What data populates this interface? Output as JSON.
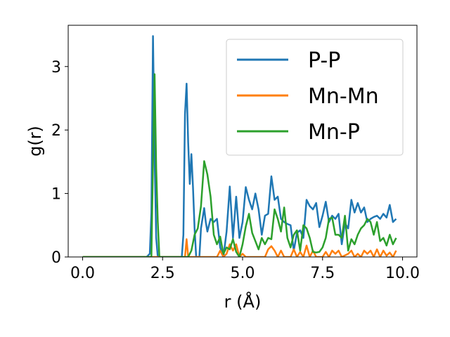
{
  "chart_data": {
    "type": "line",
    "title": "",
    "xlabel": "r (Å)",
    "ylabel": "g(r)",
    "xlim": [
      -0.45,
      10.45
    ],
    "ylim": [
      0,
      3.65
    ],
    "xticks": [
      0.0,
      2.5,
      5.0,
      7.5,
      10.0
    ],
    "xtick_labels": [
      "0.0",
      "2.5",
      "5.0",
      "7.5",
      "10.0"
    ],
    "yticks": [
      0,
      1,
      2,
      3
    ],
    "ytick_labels": [
      "0",
      "1",
      "2",
      "3"
    ],
    "grid": false,
    "legend_position": "upper-right",
    "series": [
      {
        "name": "P-P",
        "color": "#1f77b4",
        "points": [
          [
            0,
            0
          ],
          [
            2.0,
            0
          ],
          [
            2.1,
            0.05
          ],
          [
            2.15,
            0.7
          ],
          [
            2.2,
            3.48
          ],
          [
            2.25,
            1.6
          ],
          [
            2.3,
            0.3
          ],
          [
            2.35,
            0
          ],
          [
            3.1,
            0
          ],
          [
            3.15,
            0.35
          ],
          [
            3.2,
            2.25
          ],
          [
            3.25,
            2.73
          ],
          [
            3.3,
            1.8
          ],
          [
            3.35,
            1.15
          ],
          [
            3.4,
            1.62
          ],
          [
            3.45,
            1.1
          ],
          [
            3.5,
            0.45
          ],
          [
            3.55,
            0
          ],
          [
            3.65,
            0
          ],
          [
            3.7,
            0.45
          ],
          [
            3.8,
            0.77
          ],
          [
            3.85,
            0.55
          ],
          [
            3.9,
            0.4
          ],
          [
            4.0,
            0.6
          ],
          [
            4.1,
            0.55
          ],
          [
            4.2,
            0.6
          ],
          [
            4.3,
            0.15
          ],
          [
            4.4,
            0
          ],
          [
            4.5,
            0.4
          ],
          [
            4.6,
            1.11
          ],
          [
            4.7,
            0.3
          ],
          [
            4.8,
            0.95
          ],
          [
            4.9,
            0.3
          ],
          [
            5.0,
            0.55
          ],
          [
            5.1,
            1.1
          ],
          [
            5.2,
            0.9
          ],
          [
            5.3,
            0.75
          ],
          [
            5.4,
            1.0
          ],
          [
            5.5,
            0.75
          ],
          [
            5.6,
            0.35
          ],
          [
            5.7,
            0.65
          ],
          [
            5.8,
            0.68
          ],
          [
            5.9,
            1.27
          ],
          [
            6.0,
            0.9
          ],
          [
            6.1,
            0.95
          ],
          [
            6.2,
            0.6
          ],
          [
            6.3,
            0.55
          ],
          [
            6.4,
            0.52
          ],
          [
            6.5,
            0.5
          ],
          [
            6.6,
            0.1
          ],
          [
            6.7,
            0.38
          ],
          [
            6.8,
            0.42
          ],
          [
            6.9,
            0.3
          ],
          [
            7.0,
            0.9
          ],
          [
            7.1,
            0.8
          ],
          [
            7.2,
            0.75
          ],
          [
            7.3,
            0.85
          ],
          [
            7.4,
            0.47
          ],
          [
            7.5,
            0.65
          ],
          [
            7.6,
            0.87
          ],
          [
            7.7,
            0.55
          ],
          [
            7.8,
            0.65
          ],
          [
            7.9,
            0.6
          ],
          [
            8.0,
            0.68
          ],
          [
            8.1,
            0.2
          ],
          [
            8.2,
            0.53
          ],
          [
            8.3,
            0.45
          ],
          [
            8.4,
            0.9
          ],
          [
            8.5,
            0.7
          ],
          [
            8.6,
            0.85
          ],
          [
            8.7,
            0.7
          ],
          [
            8.8,
            0.78
          ],
          [
            8.9,
            0.55
          ],
          [
            9.0,
            0.6
          ],
          [
            9.1,
            0.63
          ],
          [
            9.2,
            0.65
          ],
          [
            9.3,
            0.6
          ],
          [
            9.4,
            0.68
          ],
          [
            9.5,
            0.62
          ],
          [
            9.6,
            0.82
          ],
          [
            9.7,
            0.55
          ],
          [
            9.8,
            0.6
          ]
        ]
      },
      {
        "name": "Mn-Mn",
        "color": "#ff7f0e",
        "points": [
          [
            0,
            0
          ],
          [
            3.2,
            0
          ],
          [
            3.25,
            0.28
          ],
          [
            3.3,
            0
          ],
          [
            4.2,
            0
          ],
          [
            4.3,
            0.1
          ],
          [
            4.4,
            0
          ],
          [
            4.5,
            0.05
          ],
          [
            4.6,
            0.2
          ],
          [
            4.7,
            0.1
          ],
          [
            4.8,
            0.2
          ],
          [
            4.9,
            0
          ],
          [
            5.0,
            0.05
          ],
          [
            5.1,
            0
          ],
          [
            5.7,
            0
          ],
          [
            5.8,
            0.12
          ],
          [
            5.9,
            0.17
          ],
          [
            6.0,
            0.1
          ],
          [
            6.1,
            0
          ],
          [
            6.2,
            0.1
          ],
          [
            6.3,
            0
          ],
          [
            6.5,
            0
          ],
          [
            6.6,
            0.12
          ],
          [
            6.7,
            0
          ],
          [
            6.8,
            0.08
          ],
          [
            6.9,
            0
          ],
          [
            7.0,
            0.18
          ],
          [
            7.1,
            0
          ],
          [
            7.2,
            0.1
          ],
          [
            7.3,
            0
          ],
          [
            7.5,
            0
          ],
          [
            7.6,
            0.08
          ],
          [
            7.7,
            0
          ],
          [
            7.8,
            0.1
          ],
          [
            7.9,
            0.05
          ],
          [
            8.0,
            0.1
          ],
          [
            8.1,
            0
          ],
          [
            8.3,
            0.05
          ],
          [
            8.4,
            0.1
          ],
          [
            8.5,
            0
          ],
          [
            8.6,
            0.05
          ],
          [
            8.7,
            0
          ],
          [
            8.8,
            0.1
          ],
          [
            8.9,
            0.05
          ],
          [
            9.0,
            0.1
          ],
          [
            9.1,
            0
          ],
          [
            9.2,
            0.12
          ],
          [
            9.3,
            0
          ],
          [
            9.4,
            0.1
          ],
          [
            9.5,
            0.02
          ],
          [
            9.6,
            0.07
          ],
          [
            9.7,
            0
          ],
          [
            9.8,
            0.1
          ]
        ]
      },
      {
        "name": "Mn-P",
        "color": "#2ca02c",
        "points": [
          [
            0,
            0
          ],
          [
            2.15,
            0
          ],
          [
            2.2,
            1.5
          ],
          [
            2.25,
            2.88
          ],
          [
            2.3,
            1.4
          ],
          [
            2.35,
            0.55
          ],
          [
            2.4,
            0
          ],
          [
            3.3,
            0
          ],
          [
            3.4,
            0.1
          ],
          [
            3.5,
            0.35
          ],
          [
            3.6,
            0.45
          ],
          [
            3.7,
            0.8
          ],
          [
            3.8,
            1.51
          ],
          [
            3.9,
            1.3
          ],
          [
            4.0,
            0.95
          ],
          [
            4.1,
            0.35
          ],
          [
            4.2,
            0.2
          ],
          [
            4.3,
            0.32
          ],
          [
            4.4,
            0.05
          ],
          [
            4.5,
            0.15
          ],
          [
            4.6,
            0.12
          ],
          [
            4.7,
            0.28
          ],
          [
            4.8,
            0.08
          ],
          [
            4.9,
            0
          ],
          [
            5.0,
            0.2
          ],
          [
            5.1,
            0.48
          ],
          [
            5.2,
            0.68
          ],
          [
            5.3,
            0.38
          ],
          [
            5.4,
            0.25
          ],
          [
            5.5,
            0.12
          ],
          [
            5.6,
            0.3
          ],
          [
            5.7,
            0.2
          ],
          [
            5.8,
            0.3
          ],
          [
            5.9,
            0.28
          ],
          [
            6.0,
            0.75
          ],
          [
            6.1,
            0.6
          ],
          [
            6.2,
            0.4
          ],
          [
            6.3,
            0.78
          ],
          [
            6.4,
            0.3
          ],
          [
            6.5,
            0.15
          ],
          [
            6.6,
            0.35
          ],
          [
            6.7,
            0.42
          ],
          [
            6.8,
            0.1
          ],
          [
            6.9,
            0.5
          ],
          [
            7.0,
            0.45
          ],
          [
            7.1,
            0.3
          ],
          [
            7.2,
            0.08
          ],
          [
            7.3,
            0.07
          ],
          [
            7.4,
            0.08
          ],
          [
            7.5,
            0.15
          ],
          [
            7.6,
            0.3
          ],
          [
            7.7,
            0.6
          ],
          [
            7.8,
            0.62
          ],
          [
            7.9,
            0.35
          ],
          [
            8.0,
            0.35
          ],
          [
            8.1,
            0.3
          ],
          [
            8.2,
            0.65
          ],
          [
            8.3,
            0.1
          ],
          [
            8.4,
            0.28
          ],
          [
            8.5,
            0.2
          ],
          [
            8.6,
            0.35
          ],
          [
            8.7,
            0.45
          ],
          [
            8.8,
            0.5
          ],
          [
            8.9,
            0.6
          ],
          [
            9.0,
            0.55
          ],
          [
            9.1,
            0.35
          ],
          [
            9.2,
            0.55
          ],
          [
            9.3,
            0.25
          ],
          [
            9.4,
            0.3
          ],
          [
            9.5,
            0.18
          ],
          [
            9.6,
            0.35
          ],
          [
            9.7,
            0.2
          ],
          [
            9.8,
            0.3
          ]
        ]
      }
    ]
  }
}
